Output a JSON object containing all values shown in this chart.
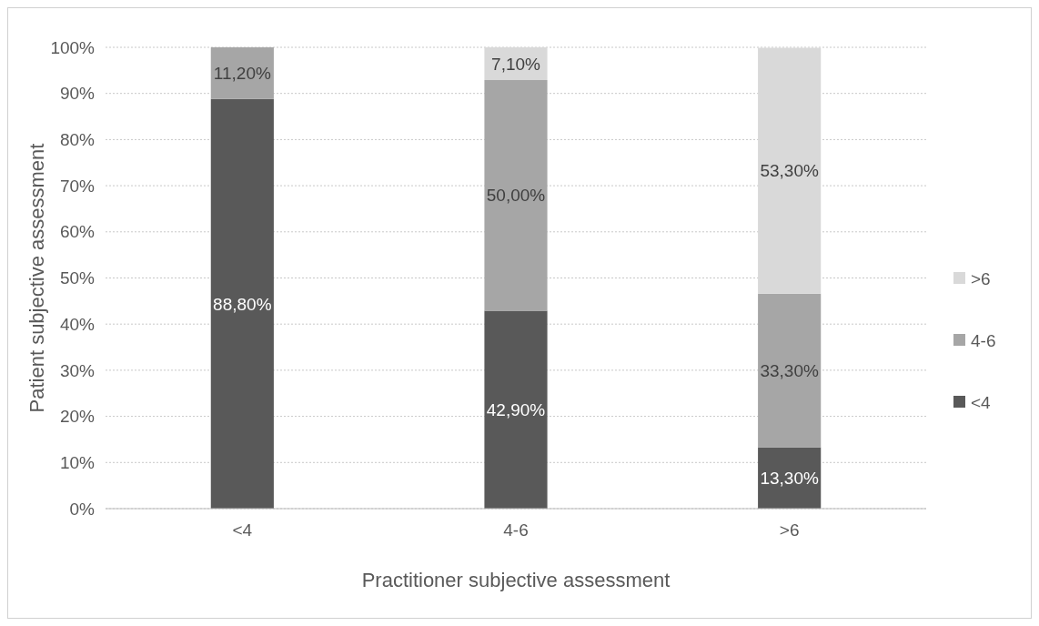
{
  "chart_data": {
    "type": "bar",
    "stacked": true,
    "xlabel": "Practitioner subjective assessment",
    "ylabel": "Patient subjective assessment",
    "categories": [
      "<4",
      "4-6",
      ">6"
    ],
    "series": [
      {
        "name": "<4",
        "color": "#595959",
        "values": [
          88.8,
          42.9,
          13.3
        ],
        "value_labels": [
          "88,80%",
          "42,90%",
          "13,30%"
        ]
      },
      {
        "name": "4-6",
        "color": "#a6a6a6",
        "values": [
          11.2,
          50.0,
          33.3
        ],
        "value_labels": [
          "11,20%",
          "50,00%",
          "33,30%"
        ]
      },
      {
        "name": ">6",
        "color": "#d9d9d9",
        "values": [
          null,
          7.1,
          53.3
        ],
        "value_labels": [
          null,
          "7,10%",
          "53,30%"
        ]
      }
    ],
    "ylim": [
      0,
      100
    ],
    "yticks": [
      {
        "value": 0,
        "label": "0%"
      },
      {
        "value": 10,
        "label": "10%"
      },
      {
        "value": 20,
        "label": "20%"
      },
      {
        "value": 30,
        "label": "30%"
      },
      {
        "value": 40,
        "label": "40%"
      },
      {
        "value": 50,
        "label": "50%"
      },
      {
        "value": 60,
        "label": "60%"
      },
      {
        "value": 70,
        "label": "70%"
      },
      {
        "value": 80,
        "label": "80%"
      },
      {
        "value": 90,
        "label": "90%"
      },
      {
        "value": 100,
        "label": "100%"
      }
    ],
    "grid": "y",
    "legend": "right"
  }
}
